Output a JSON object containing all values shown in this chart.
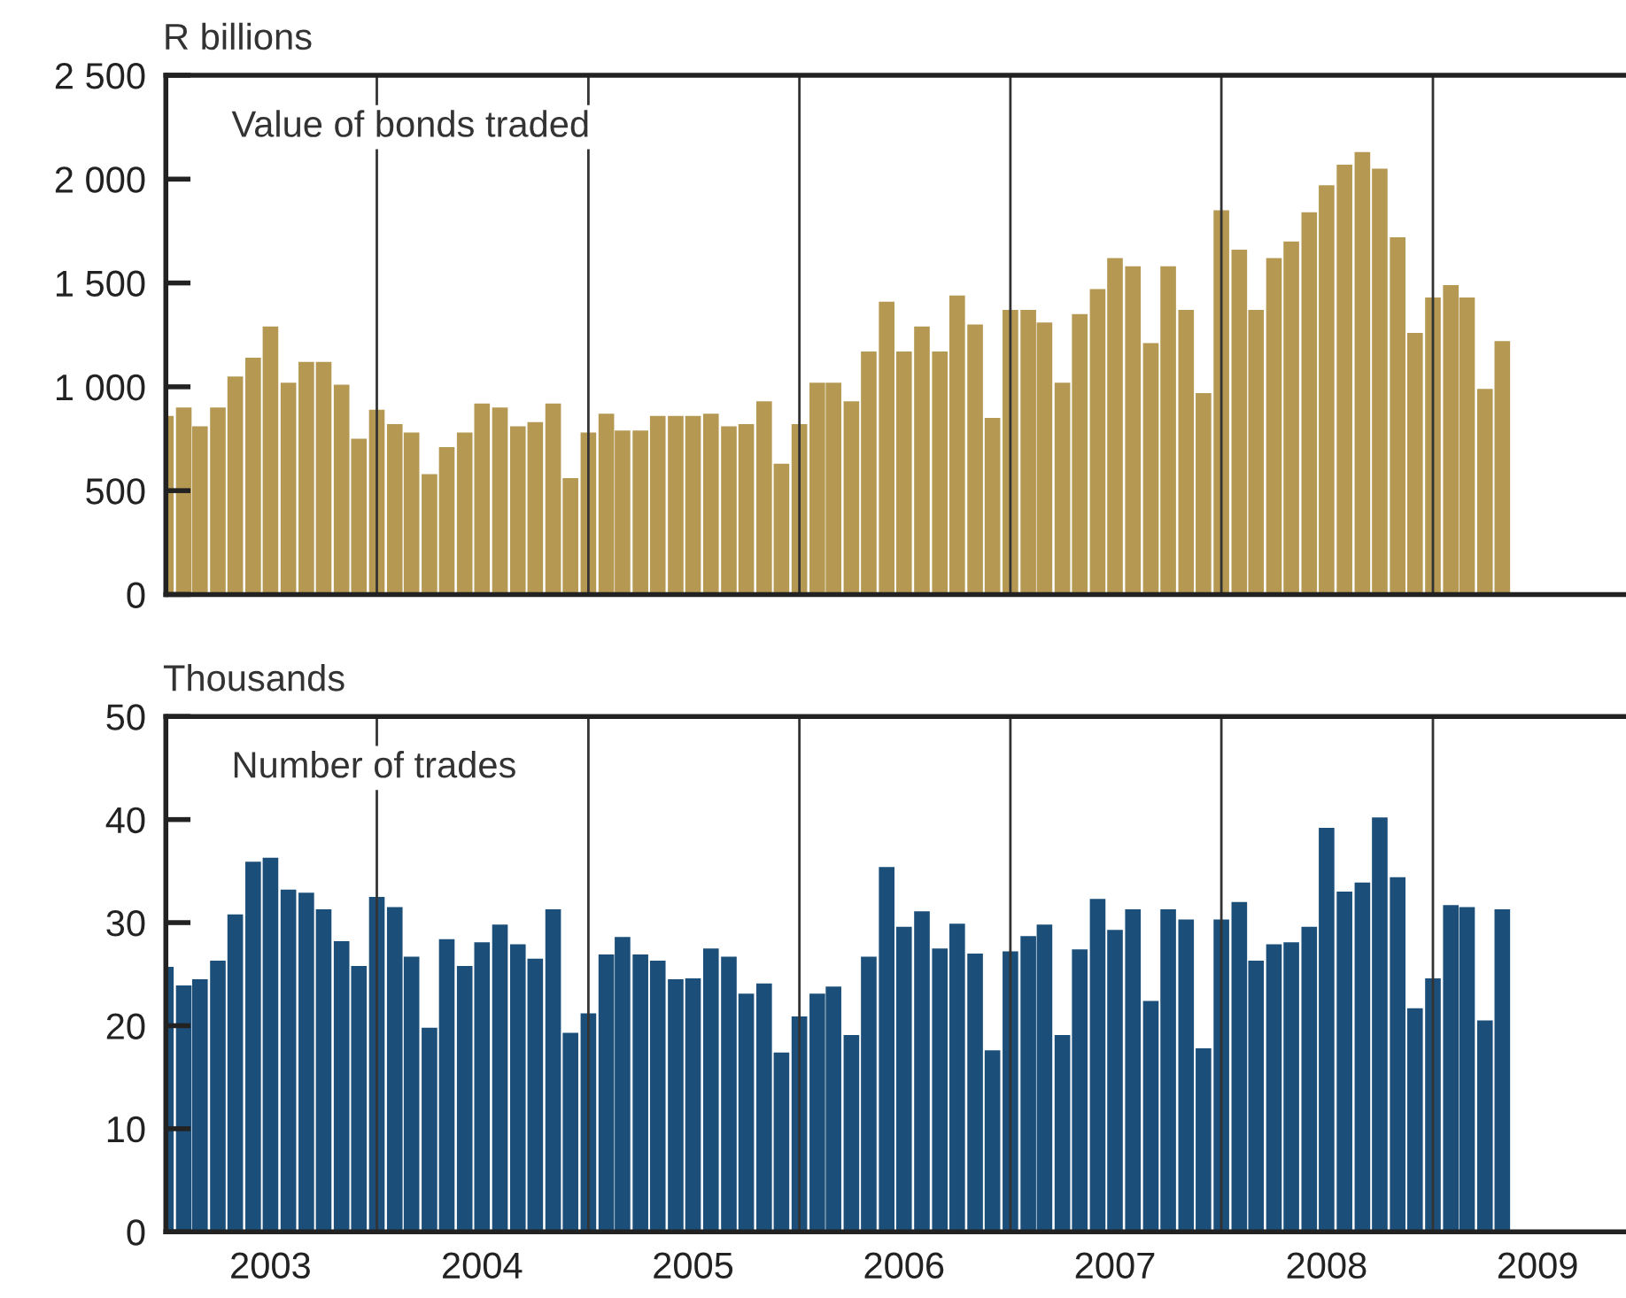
{
  "chart_data": [
    {
      "type": "bar",
      "title": "Value of bonds traded",
      "ylabel": "R billions",
      "tick_labels": "y",
      "grid": false,
      "legend": false,
      "x": [
        "2003-01",
        "2003-02",
        "2003-03",
        "2003-04",
        "2003-05",
        "2003-06",
        "2003-07",
        "2003-08",
        "2003-09",
        "2003-10",
        "2003-11",
        "2003-12",
        "2004-01",
        "2004-02",
        "2004-03",
        "2004-04",
        "2004-05",
        "2004-06",
        "2004-07",
        "2004-08",
        "2004-09",
        "2004-10",
        "2004-11",
        "2004-12",
        "2005-01",
        "2005-02",
        "2005-03",
        "2005-04",
        "2005-05",
        "2005-06",
        "2005-07",
        "2005-08",
        "2005-09",
        "2005-10",
        "2005-11",
        "2005-12",
        "2006-01",
        "2006-02",
        "2006-03",
        "2006-04",
        "2006-05",
        "2006-06",
        "2006-07",
        "2006-08",
        "2006-09",
        "2006-10",
        "2006-11",
        "2006-12",
        "2007-01",
        "2007-02",
        "2007-03",
        "2007-04",
        "2007-05",
        "2007-06",
        "2007-07",
        "2007-08",
        "2007-09",
        "2007-10",
        "2007-11",
        "2007-12",
        "2008-01",
        "2008-02",
        "2008-03",
        "2008-04",
        "2008-05",
        "2008-06",
        "2008-07",
        "2008-08",
        "2008-09",
        "2008-10",
        "2008-11",
        "2008-12",
        "2009-01",
        "2009-02",
        "2009-03",
        "2009-04",
        "2009-05"
      ],
      "series": [
        {
          "color": "#b59852",
          "values": [
            860,
            900,
            810,
            900,
            1050,
            1140,
            1290,
            1020,
            1120,
            1120,
            1010,
            750,
            890,
            820,
            780,
            580,
            710,
            780,
            920,
            900,
            810,
            830,
            920,
            560,
            780,
            870,
            790,
            790,
            860,
            860,
            860,
            870,
            810,
            820,
            930,
            630,
            820,
            1020,
            1020,
            930,
            1170,
            1410,
            1170,
            1290,
            1170,
            1440,
            1300,
            850,
            1370,
            1370,
            1310,
            1020,
            1350,
            1470,
            1620,
            1580,
            1210,
            1580,
            1370,
            970,
            1850,
            1660,
            1370,
            1620,
            1700,
            1840,
            1970,
            2070,
            2130,
            2050,
            1720,
            1260,
            1430,
            1490,
            1430,
            990,
            1220
          ]
        }
      ],
      "xlim": [
        "2003-01",
        "2009-12"
      ],
      "ylim": [
        0,
        2500
      ],
      "yticks": [
        0,
        500,
        {
          "value": 1000,
          "label": "1 000"
        },
        {
          "value": 1500,
          "label": "1 500"
        },
        {
          "value": 2000,
          "label": "2 000"
        },
        {
          "value": 2500,
          "label": "2 500"
        }
      ],
      "ref_lines": [
        {
          "axis": "x",
          "value": "2004-01",
          "color": "#333333"
        },
        {
          "axis": "x",
          "value": "2005-01",
          "color": "#333333"
        },
        {
          "axis": "x",
          "value": "2006-01",
          "color": "#333333"
        },
        {
          "axis": "x",
          "value": "2007-01",
          "color": "#333333"
        },
        {
          "axis": "x",
          "value": "2008-01",
          "color": "#333333"
        },
        {
          "axis": "x",
          "value": "2009-01",
          "color": "#333333"
        }
      ]
    },
    {
      "type": "bar",
      "title": "Number of trades",
      "ylabel": "Thousands",
      "grid": false,
      "legend": false,
      "x": [
        "2003-01",
        "2003-02",
        "2003-03",
        "2003-04",
        "2003-05",
        "2003-06",
        "2003-07",
        "2003-08",
        "2003-09",
        "2003-10",
        "2003-11",
        "2003-12",
        "2004-01",
        "2004-02",
        "2004-03",
        "2004-04",
        "2004-05",
        "2004-06",
        "2004-07",
        "2004-08",
        "2004-09",
        "2004-10",
        "2004-11",
        "2004-12",
        "2005-01",
        "2005-02",
        "2005-03",
        "2005-04",
        "2005-05",
        "2005-06",
        "2005-07",
        "2005-08",
        "2005-09",
        "2005-10",
        "2005-11",
        "2005-12",
        "2006-01",
        "2006-02",
        "2006-03",
        "2006-04",
        "2006-05",
        "2006-06",
        "2006-07",
        "2006-08",
        "2006-09",
        "2006-10",
        "2006-11",
        "2006-12",
        "2007-01",
        "2007-02",
        "2007-03",
        "2007-04",
        "2007-05",
        "2007-06",
        "2007-07",
        "2007-08",
        "2007-09",
        "2007-10",
        "2007-11",
        "2007-12",
        "2008-01",
        "2008-02",
        "2008-03",
        "2008-04",
        "2008-05",
        "2008-06",
        "2008-07",
        "2008-08",
        "2008-09",
        "2008-10",
        "2008-11",
        "2008-12",
        "2009-01",
        "2009-02",
        "2009-03",
        "2009-04",
        "2009-05"
      ],
      "series": [
        {
          "color": "#1b4f7a",
          "values": [
            25.7,
            23.9,
            24.5,
            26.3,
            30.8,
            35.9,
            36.3,
            33.2,
            32.9,
            31.3,
            28.2,
            25.8,
            32.5,
            31.5,
            26.7,
            19.8,
            28.4,
            25.8,
            28.1,
            29.8,
            27.9,
            26.5,
            31.3,
            19.3,
            21.2,
            26.9,
            28.6,
            26.9,
            26.3,
            24.5,
            24.6,
            27.5,
            26.7,
            23.1,
            24.1,
            17.4,
            20.9,
            23.1,
            23.8,
            19.1,
            26.7,
            35.4,
            29.6,
            31.1,
            27.5,
            29.9,
            27.0,
            17.6,
            27.2,
            28.7,
            29.8,
            19.1,
            27.4,
            32.3,
            29.3,
            31.3,
            22.4,
            31.3,
            30.3,
            17.8,
            30.3,
            32.0,
            26.3,
            27.9,
            28.1,
            29.6,
            39.2,
            33.0,
            33.9,
            40.2,
            34.4,
            21.7,
            24.6,
            31.7,
            31.5,
            20.5,
            31.3
          ]
        }
      ],
      "xlim": [
        "2003-01",
        "2009-12"
      ],
      "xticks": [
        {
          "value": "2003-07",
          "label": "2003"
        },
        {
          "value": "2004-07",
          "label": "2004"
        },
        {
          "value": "2005-07",
          "label": "2005"
        },
        {
          "value": "2006-07",
          "label": "2006"
        },
        {
          "value": "2007-07",
          "label": "2007"
        },
        {
          "value": "2008-07",
          "label": "2008"
        },
        {
          "value": "2009-07",
          "label": "2009"
        }
      ],
      "ylim": [
        0,
        50
      ],
      "yticks": [
        0,
        10,
        20,
        30,
        40,
        50
      ],
      "ref_lines": [
        {
          "axis": "x",
          "value": "2004-01",
          "color": "#333333"
        },
        {
          "axis": "x",
          "value": "2005-01",
          "color": "#333333"
        },
        {
          "axis": "x",
          "value": "2006-01",
          "color": "#333333"
        },
        {
          "axis": "x",
          "value": "2007-01",
          "color": "#333333"
        },
        {
          "axis": "x",
          "value": "2008-01",
          "color": "#333333"
        },
        {
          "axis": "x",
          "value": "2009-01",
          "color": "#333333"
        }
      ]
    }
  ]
}
